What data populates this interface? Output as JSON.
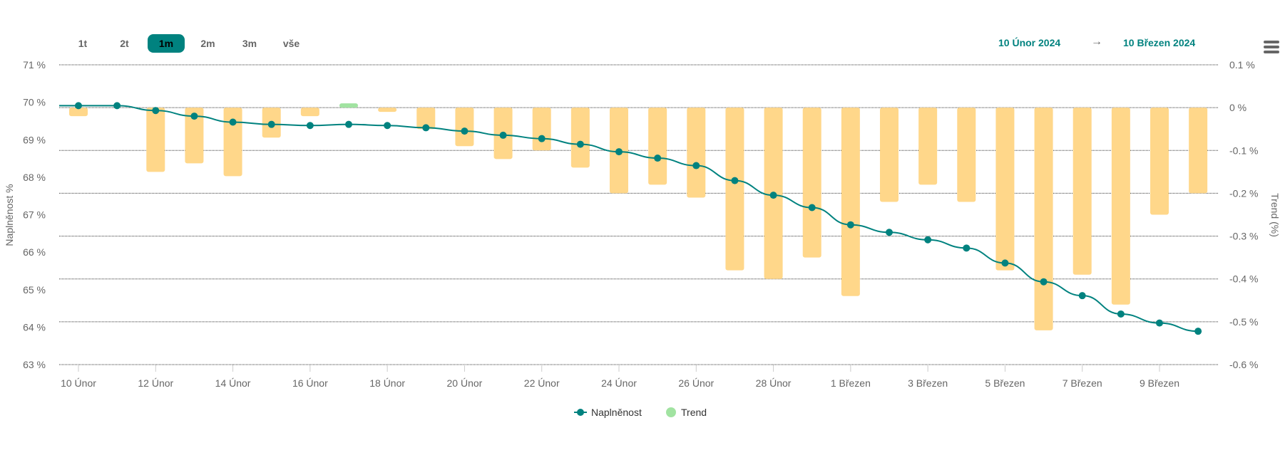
{
  "range_selector": {
    "buttons": [
      "1t",
      "2t",
      "1m",
      "2m",
      "3m",
      "vše"
    ],
    "selected": "1m"
  },
  "date_range": {
    "from": "10 Únor 2024",
    "arrow": "→",
    "to": "10 Březen 2024"
  },
  "colors": {
    "line": "#00827f",
    "bar_negative": "#ffd78a",
    "bar_positive": "#a1e3a1",
    "accent": "#00827f"
  },
  "chart_data": {
    "type": "bar+line",
    "x": [
      "10 Únor",
      "11 Únor",
      "12 Únor",
      "13 Únor",
      "14 Únor",
      "15 Únor",
      "16 Únor",
      "17 Únor",
      "18 Únor",
      "19 Únor",
      "20 Únor",
      "21 Únor",
      "22 Únor",
      "23 Únor",
      "24 Únor",
      "25 Únor",
      "26 Únor",
      "27 Únor",
      "28 Únor",
      "29 Únor",
      "1 Březen",
      "2 Březen",
      "3 Březen",
      "4 Březen",
      "5 Březen",
      "6 Březen",
      "7 Březen",
      "8 Březen",
      "9 Březen",
      "10 Březen"
    ],
    "x_tick_labels": [
      "10 Únor",
      "12 Únor",
      "14 Únor",
      "16 Únor",
      "18 Únor",
      "20 Únor",
      "22 Únor",
      "24 Únor",
      "26 Únor",
      "28 Únor",
      "1 Březen",
      "3 Březen",
      "5 Březen",
      "7 Březen",
      "9 Březen"
    ],
    "series": [
      {
        "name": "Naplněnost",
        "type": "line",
        "axis": "left",
        "values": [
          69.91,
          69.91,
          69.78,
          69.63,
          69.47,
          69.41,
          69.38,
          69.41,
          69.38,
          69.32,
          69.23,
          69.12,
          69.03,
          68.88,
          68.68,
          68.51,
          68.31,
          67.91,
          67.52,
          67.19,
          66.73,
          66.53,
          66.33,
          66.11,
          65.71,
          65.21,
          64.84,
          64.35,
          64.11,
          63.89
        ]
      },
      {
        "name": "Trend",
        "type": "bar",
        "axis": "right",
        "values": [
          -0.02,
          0,
          -0.15,
          -0.13,
          -0.16,
          -0.07,
          -0.02,
          0.01,
          -0.01,
          -0.05,
          -0.09,
          -0.12,
          -0.1,
          -0.14,
          -0.2,
          -0.18,
          -0.21,
          -0.38,
          -0.4,
          -0.35,
          -0.44,
          -0.22,
          -0.18,
          -0.22,
          -0.38,
          -0.52,
          -0.39,
          -0.46,
          -0.25,
          -0.2
        ]
      }
    ],
    "left_axis": {
      "label": "Naplněnost %",
      "ylim": [
        63,
        71
      ],
      "ticks": [
        "71 %",
        "70 %",
        "69 %",
        "68 %",
        "67 %",
        "66 %",
        "65 %",
        "64 %",
        "63 %"
      ]
    },
    "right_axis": {
      "label": "Trend (%)",
      "ylim": [
        -0.6,
        0.1
      ],
      "ticks": [
        "0.1 %",
        "0 %",
        "-0.1 %",
        "-0.2 %",
        "-0.3 %",
        "-0.4 %",
        "-0.5 %",
        "-0.6 %"
      ]
    },
    "grid": true,
    "legend": {
      "position": "bottom-center",
      "items": [
        "Naplněnost",
        "Trend"
      ]
    }
  }
}
